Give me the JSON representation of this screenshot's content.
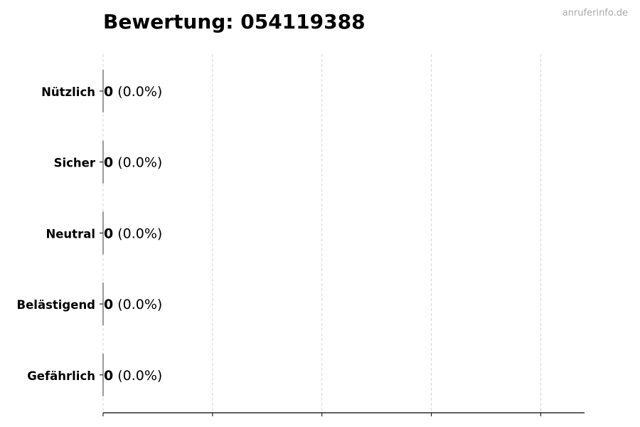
{
  "chart_data": {
    "type": "bar",
    "orientation": "horizontal",
    "title": "Bewertung: 054119388",
    "watermark": "anruferinfo.de",
    "categories": [
      "Nützlich",
      "Sicher",
      "Neutral",
      "Belästigend",
      "Gefährlich"
    ],
    "values": [
      0,
      0,
      0,
      0,
      0
    ],
    "data_labels": [
      {
        "count": "0",
        "percent": "(0.0%)"
      },
      {
        "count": "0",
        "percent": "(0.0%)"
      },
      {
        "count": "0",
        "percent": "(0.0%)"
      },
      {
        "count": "0",
        "percent": "(0.0%)"
      },
      {
        "count": "0",
        "percent": "(0.0%)"
      }
    ],
    "xlabel": "",
    "ylabel": "",
    "xlim": [
      0,
      4.4
    ],
    "x_ticks": [
      0,
      1,
      2,
      3,
      4
    ],
    "x_tick_labels_shown": false,
    "grid": "x, dashed",
    "colors": {
      "bar_edge": "#333333",
      "grid": "#cccccc",
      "axis": "#000000",
      "watermark": "#aaaaaa"
    }
  }
}
